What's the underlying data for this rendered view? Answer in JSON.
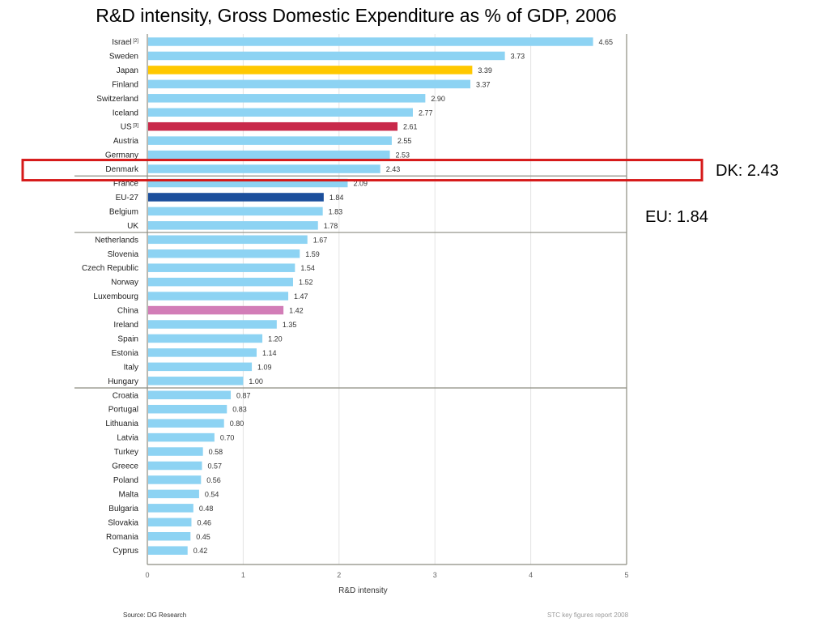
{
  "slide": {
    "title": "R&D intensity, Gross Domestic Expenditure as % of GDP, 2006",
    "callouts": {
      "dk": "DK: 2.43",
      "eu": "EU: 1.84"
    },
    "source": "Source:  DG Research",
    "report": "STC key figures report 2008"
  },
  "colors": {
    "default": "#8dd3f3",
    "japan": "#ffc800",
    "us": "#c8294a",
    "eu27": "#1c4f9c",
    "china": "#d27db7",
    "highlight_box": "#d61a1a",
    "axis": "#8c8c80"
  },
  "chart_data": {
    "type": "bar",
    "orientation": "horizontal",
    "title": "",
    "xlabel": "R&D intensity",
    "ylabel": "",
    "xlim": [
      0,
      5
    ],
    "x_ticks": [
      "0",
      "1",
      "2",
      "3",
      "4",
      "5"
    ],
    "grid": true,
    "highlight_category": "Denmark",
    "group_separators_after": [
      "Denmark",
      "UK",
      "Hungary"
    ],
    "bars": [
      {
        "label": "Israel",
        "sup": "[2]",
        "value": 4.65,
        "value_label": "4.65",
        "color_key": "default"
      },
      {
        "label": "Sweden",
        "sup": "",
        "value": 3.73,
        "value_label": "3.73",
        "color_key": "default"
      },
      {
        "label": "Japan",
        "sup": "",
        "value": 3.39,
        "value_label": "3.39",
        "color_key": "japan"
      },
      {
        "label": "Finland",
        "sup": "",
        "value": 3.37,
        "value_label": "3.37",
        "color_key": "default"
      },
      {
        "label": "Switzerland",
        "sup": "",
        "value": 2.9,
        "value_label": "2.90",
        "color_key": "default"
      },
      {
        "label": "Iceland",
        "sup": "",
        "value": 2.77,
        "value_label": "2.77",
        "color_key": "default"
      },
      {
        "label": "US",
        "sup": "[3]",
        "value": 2.61,
        "value_label": "2.61",
        "color_key": "us"
      },
      {
        "label": "Austria",
        "sup": "",
        "value": 2.55,
        "value_label": "2.55",
        "color_key": "default"
      },
      {
        "label": "Germany",
        "sup": "",
        "value": 2.53,
        "value_label": "2.53",
        "color_key": "default"
      },
      {
        "label": "Denmark",
        "sup": "",
        "value": 2.43,
        "value_label": "2.43",
        "color_key": "default"
      },
      {
        "label": "France",
        "sup": "",
        "value": 2.09,
        "value_label": "2.09",
        "color_key": "default"
      },
      {
        "label": "EU-27",
        "sup": "",
        "value": 1.84,
        "value_label": "1.84",
        "color_key": "eu27"
      },
      {
        "label": "Belgium",
        "sup": "",
        "value": 1.83,
        "value_label": "1.83",
        "color_key": "default"
      },
      {
        "label": "UK",
        "sup": "",
        "value": 1.78,
        "value_label": "1.78",
        "color_key": "default"
      },
      {
        "label": "Netherlands",
        "sup": "",
        "value": 1.67,
        "value_label": "1.67",
        "color_key": "default"
      },
      {
        "label": "Slovenia",
        "sup": "",
        "value": 1.59,
        "value_label": "1.59",
        "color_key": "default"
      },
      {
        "label": "Czech Republic",
        "sup": "",
        "value": 1.54,
        "value_label": "1.54",
        "color_key": "default"
      },
      {
        "label": "Norway",
        "sup": "",
        "value": 1.52,
        "value_label": "1.52",
        "color_key": "default"
      },
      {
        "label": "Luxembourg",
        "sup": "",
        "value": 1.47,
        "value_label": "1.47",
        "color_key": "default"
      },
      {
        "label": "China",
        "sup": "",
        "value": 1.42,
        "value_label": "1.42",
        "color_key": "china"
      },
      {
        "label": "Ireland",
        "sup": "",
        "value": 1.35,
        "value_label": "1.35",
        "color_key": "default"
      },
      {
        "label": "Spain",
        "sup": "",
        "value": 1.2,
        "value_label": "1.20",
        "color_key": "default"
      },
      {
        "label": "Estonia",
        "sup": "",
        "value": 1.14,
        "value_label": "1.14",
        "color_key": "default"
      },
      {
        "label": "Italy",
        "sup": "",
        "value": 1.09,
        "value_label": "1.09",
        "color_key": "default"
      },
      {
        "label": "Hungary",
        "sup": "",
        "value": 1.0,
        "value_label": "1.00",
        "color_key": "default"
      },
      {
        "label": "Croatia",
        "sup": "",
        "value": 0.87,
        "value_label": "0.87",
        "color_key": "default"
      },
      {
        "label": "Portugal",
        "sup": "",
        "value": 0.83,
        "value_label": "0.83",
        "color_key": "default"
      },
      {
        "label": "Lithuania",
        "sup": "",
        "value": 0.8,
        "value_label": "0.80",
        "color_key": "default"
      },
      {
        "label": "Latvia",
        "sup": "",
        "value": 0.7,
        "value_label": "0.70",
        "color_key": "default"
      },
      {
        "label": "Turkey",
        "sup": "",
        "value": 0.58,
        "value_label": "0.58",
        "color_key": "default"
      },
      {
        "label": "Greece",
        "sup": "",
        "value": 0.57,
        "value_label": "0.57",
        "color_key": "default"
      },
      {
        "label": "Poland",
        "sup": "",
        "value": 0.56,
        "value_label": "0.56",
        "color_key": "default"
      },
      {
        "label": "Malta",
        "sup": "",
        "value": 0.54,
        "value_label": "0.54",
        "color_key": "default"
      },
      {
        "label": "Bulgaria",
        "sup": "",
        "value": 0.48,
        "value_label": "0.48",
        "color_key": "default"
      },
      {
        "label": "Slovakia",
        "sup": "",
        "value": 0.46,
        "value_label": "0.46",
        "color_key": "default"
      },
      {
        "label": "Romania",
        "sup": "",
        "value": 0.45,
        "value_label": "0.45",
        "color_key": "default"
      },
      {
        "label": "Cyprus",
        "sup": "",
        "value": 0.42,
        "value_label": "0.42",
        "color_key": "default"
      }
    ]
  }
}
